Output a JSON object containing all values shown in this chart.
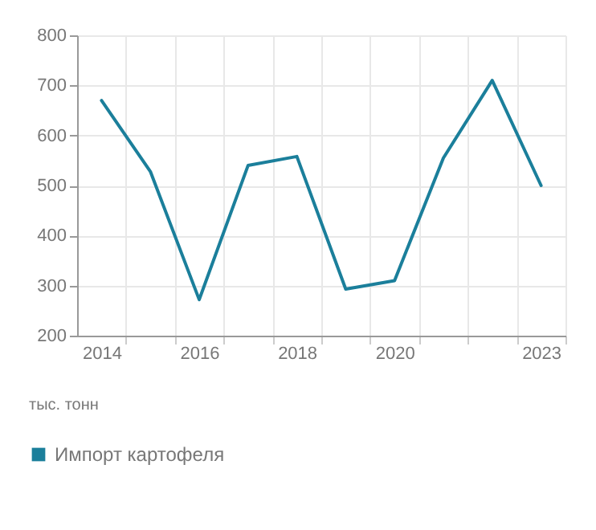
{
  "chart_data": {
    "type": "line",
    "x": [
      2014,
      2015,
      2016,
      2017,
      2018,
      2019,
      2020,
      2021,
      2022,
      2023
    ],
    "series": [
      {
        "name": "Импорт картофеля",
        "color": "#1b7f9b",
        "values": [
          670,
          528,
          272,
          540,
          558,
          293,
          310,
          555,
          710,
          500
        ]
      }
    ],
    "xlim": [
      2013.5,
      2023.5
    ],
    "xticks": [
      2014,
      {
        "value": 2014.5,
        "label": null
      },
      {
        "value": 2015.5,
        "label": null
      },
      2016,
      {
        "value": 2016.5,
        "label": null
      },
      {
        "value": 2017.5,
        "label": null
      },
      2018,
      {
        "value": 2018.5,
        "label": null
      },
      {
        "value": 2019.5,
        "label": null
      },
      2020,
      {
        "value": 2020.5,
        "label": null
      },
      {
        "value": 2021.5,
        "label": null
      },
      {
        "value": 2022.5,
        "label": null
      },
      2023,
      {
        "value": 2023.5,
        "label": null
      }
    ],
    "ylim": [
      200,
      800
    ],
    "yticks": [
      200,
      300,
      400,
      500,
      600,
      700,
      800
    ],
    "grid": true,
    "legend": "bottom left",
    "marker": "none",
    "line_style": "solid",
    "annotations": [
      "тыс. тонн"
    ]
  }
}
